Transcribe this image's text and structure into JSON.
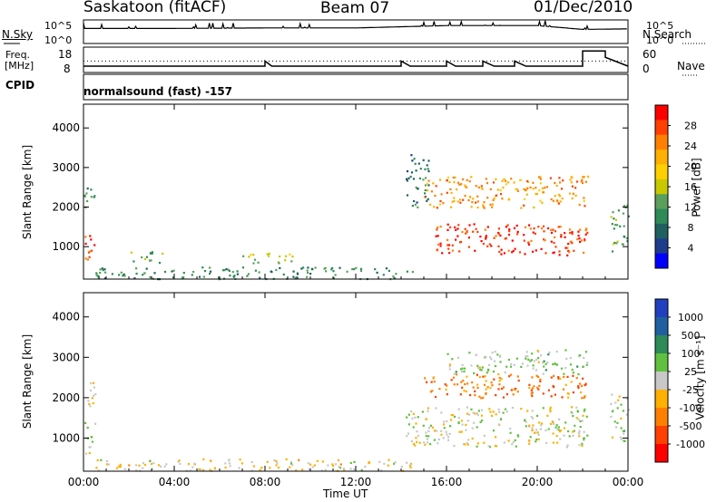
{
  "header": {
    "station": "Saskatoon (fitACF)",
    "beam": "Beam 07",
    "date": "01/Dec/2010"
  },
  "sky_panel": {
    "left_label": "N.Sky",
    "left_ticks": [
      "10^5",
      "10^0"
    ],
    "right_label": "N.Search",
    "right_ticks": [
      "10^5",
      "10^0"
    ]
  },
  "freq_panel": {
    "left_label_1": "Freq.",
    "left_label_2": "[MHz]",
    "left_ticks": [
      "18",
      "8"
    ],
    "right_label": "Nave",
    "right_ticks": [
      "60",
      "0"
    ]
  },
  "cpid_panel": {
    "label": "CPID",
    "program": "normalsound (fast) -157"
  },
  "time_axis": {
    "label": "Time UT",
    "ticks": [
      "00:00",
      "04:00",
      "08:00",
      "12:00",
      "16:00",
      "20:00",
      "00:00"
    ]
  },
  "power_colorbar": {
    "label": "Power [dB]",
    "ticks": [
      "28",
      "24",
      "20",
      "16",
      "12",
      "8",
      "4"
    ],
    "colors": [
      "#ff0000",
      "#ff4000",
      "#ff8000",
      "#ffb000",
      "#ffd000",
      "#c8c800",
      "#5aa05a",
      "#2e8b57",
      "#206060",
      "#1e3c8c",
      "#0000ff"
    ]
  },
  "velocity_colorbar": {
    "label": "Velocity [m s⁻¹]",
    "ticks": [
      "1000",
      "500",
      "100",
      "25",
      "-25",
      "-100",
      "-500",
      "-1000"
    ],
    "colors": [
      "#2040c0",
      "#2060a0",
      "#2e8b57",
      "#60c040",
      "#c8c8c8",
      "#ffb000",
      "#ff8000",
      "#ff4000",
      "#ff0000"
    ]
  },
  "chart_data": {
    "type": "heatmap",
    "title": "Saskatoon (fitACF) Beam 07 01/Dec/2010",
    "xlabel": "Time UT",
    "xlim_hours": [
      0,
      24
    ],
    "panels": [
      {
        "name": "power",
        "ylabel": "Slant Range [km]",
        "ylim": [
          180,
          4600
        ],
        "yticks": [
          1000,
          2000,
          3000,
          4000
        ],
        "color_label": "Power [dB]",
        "color_range": [
          0,
          30
        ],
        "regions": [
          {
            "t0": 0.0,
            "t1": 0.5,
            "r0": 600,
            "r1": 1400,
            "level": 26
          },
          {
            "t0": 0.0,
            "t1": 0.5,
            "r0": 1800,
            "r1": 2500,
            "level": 10
          },
          {
            "t0": 0.5,
            "t1": 14.5,
            "r0": 200,
            "r1": 500,
            "level": 10
          },
          {
            "t0": 2.0,
            "t1": 3.5,
            "r0": 600,
            "r1": 900,
            "level": 12
          },
          {
            "t0": 7.0,
            "t1": 9.5,
            "r0": 600,
            "r1": 850,
            "level": 14
          },
          {
            "t0": 14.2,
            "t1": 15.2,
            "r0": 2000,
            "r1": 3400,
            "level": 8
          },
          {
            "t0": 15.0,
            "t1": 22.2,
            "r0": 2000,
            "r1": 2800,
            "level": 22
          },
          {
            "t0": 15.5,
            "t1": 22.2,
            "r0": 800,
            "r1": 1600,
            "level": 27
          },
          {
            "t0": 23.2,
            "t1": 24.0,
            "r0": 900,
            "r1": 2100,
            "level": 12
          }
        ]
      },
      {
        "name": "velocity",
        "ylabel": "Slant Range [km]",
        "ylim": [
          180,
          4600
        ],
        "yticks": [
          1000,
          2000,
          3000,
          4000
        ],
        "color_label": "Velocity [m s⁻¹]",
        "color_range": [
          -1000,
          1000
        ],
        "regions": [
          {
            "t0": 0.0,
            "t1": 0.5,
            "r0": 1800,
            "r1": 2600,
            "level": 0
          },
          {
            "t0": 0.0,
            "t1": 0.5,
            "r0": 600,
            "r1": 1400,
            "level": 100
          },
          {
            "t0": 0.5,
            "t1": 14.5,
            "r0": 200,
            "r1": 500,
            "level": -100
          },
          {
            "t0": 14.2,
            "t1": 22.2,
            "r0": 800,
            "r1": 1800,
            "level": 0
          },
          {
            "t0": 15.0,
            "t1": 22.2,
            "r0": 2000,
            "r1": 2600,
            "level": -500
          },
          {
            "t0": 16.0,
            "t1": 22.2,
            "r0": 2600,
            "r1": 3200,
            "level": 100
          },
          {
            "t0": 23.2,
            "t1": 24.0,
            "r0": 900,
            "r1": 2100,
            "level": 100
          }
        ]
      }
    ],
    "noise_sky": [
      {
        "t": 0,
        "v": 3.2
      },
      {
        "t": 4,
        "v": 3.2
      },
      {
        "t": 8,
        "v": 3.3
      },
      {
        "t": 12,
        "v": 3.3
      },
      {
        "t": 16,
        "v": 3.8
      },
      {
        "t": 20,
        "v": 3.8
      },
      {
        "t": 22,
        "v": 3.0
      },
      {
        "t": 24,
        "v": 3.1
      }
    ],
    "frequency_mhz": [
      {
        "t": 0,
        "v": 10.5
      },
      {
        "t": 8,
        "v": 10.5
      },
      {
        "t": 8.0,
        "v": 12.5
      },
      {
        "t": 8.3,
        "v": 10.5
      },
      {
        "t": 14.0,
        "v": 10.5
      },
      {
        "t": 14.0,
        "v": 12.5
      },
      {
        "t": 14.4,
        "v": 10.5
      },
      {
        "t": 16.0,
        "v": 10.5
      },
      {
        "t": 16.0,
        "v": 12.5
      },
      {
        "t": 16.4,
        "v": 10.5
      },
      {
        "t": 17.6,
        "v": 10.5
      },
      {
        "t": 17.6,
        "v": 12.5
      },
      {
        "t": 18.1,
        "v": 10.5
      },
      {
        "t": 19.0,
        "v": 10.5
      },
      {
        "t": 19.0,
        "v": 12.5
      },
      {
        "t": 19.5,
        "v": 10.5
      },
      {
        "t": 22.0,
        "v": 10.5
      },
      {
        "t": 22.0,
        "v": 16.5
      },
      {
        "t": 23.0,
        "v": 16.5
      },
      {
        "t": 23.0,
        "v": 14.0
      },
      {
        "t": 24,
        "v": 10.5
      }
    ],
    "nave_dotted_level": 12.5
  }
}
